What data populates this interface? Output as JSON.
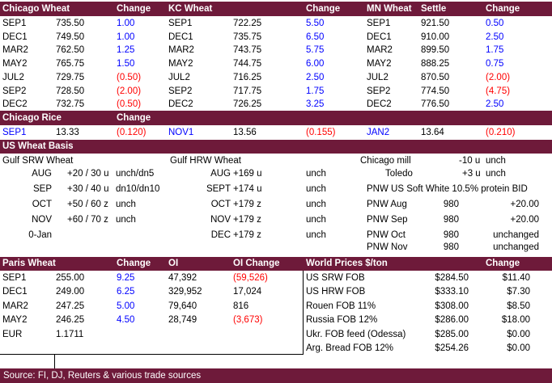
{
  "futures": {
    "headers": {
      "chicago": "Chicago Wheat",
      "change1": "Change",
      "kc": "KC Wheat",
      "change2": "Change",
      "mn": "MN Wheat",
      "settle": "Settle",
      "change3": "Change"
    },
    "rows": [
      {
        "c_m": "SEP1",
        "c_p": "735.50",
        "c_ch": "1.00",
        "c_col": "blue",
        "k_m": "SEP1",
        "k_p": "722.25",
        "k_ch": "5.50",
        "k_col": "blue",
        "m_m": "SEP1",
        "m_p": "921.50",
        "m_ch": "0.50",
        "m_col": "blue"
      },
      {
        "c_m": "DEC1",
        "c_p": "749.50",
        "c_ch": "1.00",
        "c_col": "blue",
        "k_m": "DEC1",
        "k_p": "735.75",
        "k_ch": "6.50",
        "k_col": "blue",
        "m_m": "DEC1",
        "m_p": "910.00",
        "m_ch": "2.50",
        "m_col": "blue"
      },
      {
        "c_m": "MAR2",
        "c_p": "762.50",
        "c_ch": "1.25",
        "c_col": "blue",
        "k_m": "MAR2",
        "k_p": "743.75",
        "k_ch": "5.75",
        "k_col": "blue",
        "m_m": "MAR2",
        "m_p": "899.50",
        "m_ch": "1.75",
        "m_col": "blue"
      },
      {
        "c_m": "MAY2",
        "c_p": "765.75",
        "c_ch": "1.50",
        "c_col": "blue",
        "k_m": "MAY2",
        "k_p": "744.75",
        "k_ch": "6.00",
        "k_col": "blue",
        "m_m": "MAY2",
        "m_p": "888.25",
        "m_ch": "0.75",
        "m_col": "blue"
      },
      {
        "c_m": "JUL2",
        "c_p": "729.75",
        "c_ch": "(0.50)",
        "c_col": "red",
        "k_m": "JUL2",
        "k_p": "716.25",
        "k_ch": "2.50",
        "k_col": "blue",
        "m_m": "JUL2",
        "m_p": "870.50",
        "m_ch": "(2.00)",
        "m_col": "red"
      },
      {
        "c_m": "SEP2",
        "c_p": "728.50",
        "c_ch": "(2.00)",
        "c_col": "red",
        "k_m": "SEP2",
        "k_p": "717.75",
        "k_ch": "1.75",
        "k_col": "blue",
        "m_m": "SEP2",
        "m_p": "774.50",
        "m_ch": "(4.75)",
        "m_col": "red"
      },
      {
        "c_m": "DEC2",
        "c_p": "732.75",
        "c_ch": "(0.50)",
        "c_col": "red",
        "k_m": "DEC2",
        "k_p": "726.25",
        "k_ch": "3.25",
        "k_col": "blue",
        "m_m": "DEC2",
        "m_p": "776.50",
        "m_ch": "2.50",
        "m_col": "blue"
      }
    ]
  },
  "rice": {
    "title": "Chicago Rice",
    "change": "Change",
    "row": {
      "m1": "SEP1",
      "p1": "13.33",
      "ch1": "(0.120)",
      "m2": "NOV1",
      "p2": "13.56",
      "ch2": "(0.155)",
      "m3": "JAN2",
      "p3": "13.64",
      "ch3": "(0.210)"
    }
  },
  "basis": {
    "title": "US Wheat Basis",
    "srw_title": "Gulf SRW Wheat",
    "hrw_title": "Gulf HRW Wheat",
    "srw": [
      {
        "m": "AUG",
        "v": "+20 / 30 u",
        "ch": "unch/dn5"
      },
      {
        "m": "SEP",
        "v": "+30 / 40 u",
        "ch": "dn10/dn10"
      },
      {
        "m": "OCT",
        "v": "+50 / 60 z",
        "ch": "unch"
      },
      {
        "m": "NOV",
        "v": "+60 / 70 z",
        "ch": "unch"
      },
      {
        "m": "0-Jan",
        "v": "",
        "ch": ""
      }
    ],
    "hrw": [
      {
        "m": "AUG",
        "v": "+169 u",
        "ch": "unch"
      },
      {
        "m": "SEPT",
        "v": "+174 u",
        "ch": "unch"
      },
      {
        "m": "OCT",
        "v": "+179 z",
        "ch": "unch"
      },
      {
        "m": "NOV",
        "v": "+179 z",
        "ch": "unch"
      },
      {
        "m": "DEC",
        "v": "+179 z",
        "ch": "unch"
      }
    ],
    "chicago_mill": {
      "label": "Chicago mill",
      "v": "-10 u",
      "ch": "unch"
    },
    "toledo": {
      "label": "Toledo",
      "v": "+3 u",
      "ch": "unch"
    },
    "pnw_title": "PNW US Soft White 10.5% protein BID",
    "pnw": [
      {
        "m": "PNW Aug",
        "v": "980",
        "ch": "+20.00"
      },
      {
        "m": "PNW Sep",
        "v": "980",
        "ch": "+20.00"
      },
      {
        "m": "PNW Oct",
        "v": "980",
        "ch": "unchanged"
      },
      {
        "m": "PNW Nov",
        "v": "980",
        "ch": "unchanged"
      }
    ]
  },
  "paris": {
    "headers": {
      "title": "Paris Wheat",
      "change": "Change",
      "oi": "OI",
      "oi_change": "OI Change"
    },
    "rows": [
      {
        "m": "SEP1",
        "p": "255.00",
        "ch": "9.25",
        "oi": "47,392",
        "oich": "(59,526)",
        "oicol": "red"
      },
      {
        "m": "DEC1",
        "p": "249.00",
        "ch": "6.25",
        "oi": "329,952",
        "oich": "17,024",
        "oicol": "black"
      },
      {
        "m": "MAR2",
        "p": "247.25",
        "ch": "5.00",
        "oi": "79,640",
        "oich": "816",
        "oicol": "black"
      },
      {
        "m": "MAY2",
        "p": "246.25",
        "ch": "4.50",
        "oi": "28,749",
        "oich": "(3,673)",
        "oicol": "red"
      }
    ],
    "eur": {
      "label": "EUR",
      "v": "1.1711"
    }
  },
  "world": {
    "headers": {
      "title": "World Prices $/ton",
      "change": "Change"
    },
    "rows": [
      {
        "n": "US SRW FOB",
        "p": "$284.50",
        "ch": "$11.40"
      },
      {
        "n": "US HRW FOB",
        "p": "$333.10",
        "ch": "$7.30"
      },
      {
        "n": "Rouen FOB 11%",
        "p": "$308.00",
        "ch": "$8.50"
      },
      {
        "n": "Russia FOB 12%",
        "p": "$286.00",
        "ch": "$18.00"
      },
      {
        "n": "Ukr. FOB feed (Odessa)",
        "p": "$285.00",
        "ch": "$0.00"
      },
      {
        "n": "Arg. Bread FOB 12%",
        "p": "$254.26",
        "ch": "$0.00"
      }
    ]
  },
  "footer": {
    "source": "Source: FI, DJ, Reuters & various trade sources"
  },
  "colors": {
    "header_bg": "#6e1a3a",
    "positive": "#0000ff",
    "negative": "#ff0000"
  }
}
